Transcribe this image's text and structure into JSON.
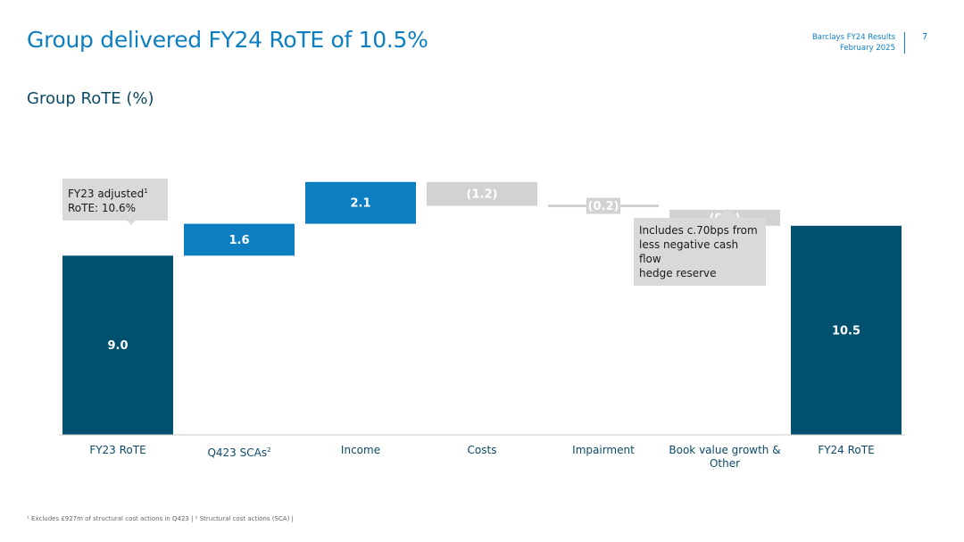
{
  "page": {
    "title": "Group delivered FY24 RoTE of 10.5%",
    "report_line1": "Barclays FY24 Results",
    "report_line2": "February 2025",
    "page_number": "7",
    "subtitle": "Group RoTE (%)",
    "footnote": "¹ Excludes £927m of structural cost actions in Q423 | ² Structural cost actions (SCA) |"
  },
  "callouts": {
    "fy23": {
      "text": "FY23 adjusted",
      "sup": "1",
      "line2": "RoTE: 10.6%"
    },
    "bvg": {
      "line1": "Includes c.70bps from",
      "line2": "less negative cash flow",
      "line3": "hedge reserve"
    }
  },
  "colors": {
    "total": "#00506e",
    "increase": "#0d7fc1",
    "decrease": "#d2d2d2",
    "axis": "#c8c8c8",
    "category_text": "#0c4a66"
  },
  "chart_data": {
    "type": "waterfall",
    "title": "Group RoTE (%)",
    "categories": [
      "FY23 RoTE",
      "Q423 SCAs",
      "Income",
      "Costs",
      "Impairment",
      "Book value growth & Other",
      "FY24 RoTE"
    ],
    "category_superscripts": [
      "",
      "2",
      "",
      "",
      "",
      "",
      ""
    ],
    "values": [
      9.0,
      1.6,
      2.1,
      -1.2,
      -0.2,
      -0.8,
      10.5
    ],
    "kinds": [
      "total",
      "increase",
      "increase",
      "decrease",
      "decrease",
      "decrease",
      "total"
    ],
    "labels": [
      "9.0",
      "1.6",
      "2.1",
      "(1.2)",
      "(0.2)",
      "(0.8)",
      "10.5"
    ]
  }
}
